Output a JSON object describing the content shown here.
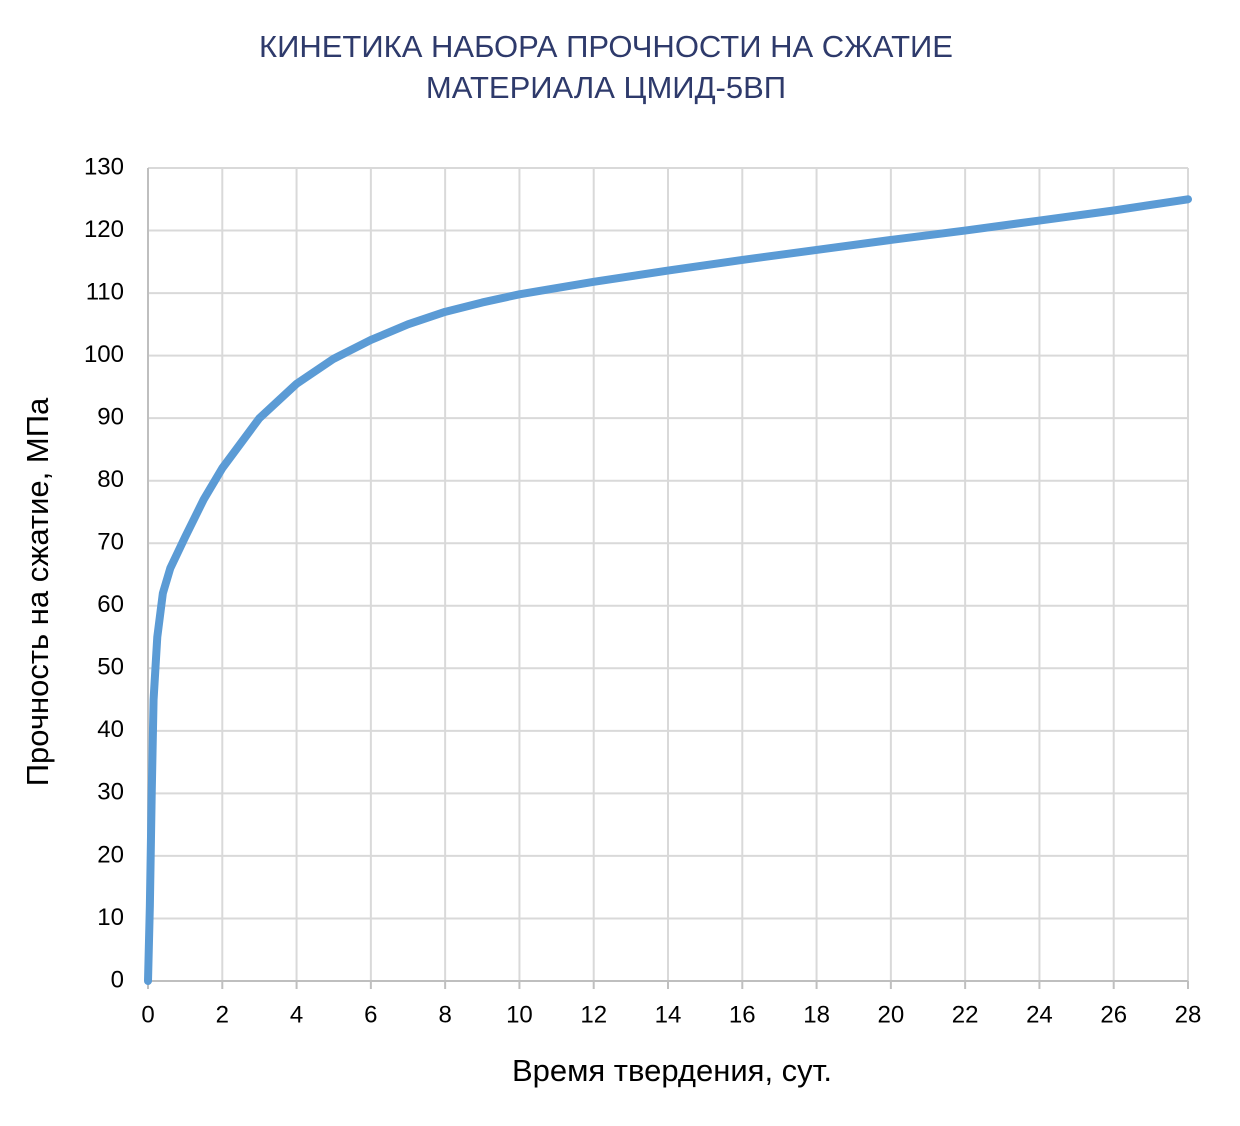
{
  "chart_data": {
    "type": "line",
    "title": [
      "КИНЕТИКА НАБОРА ПРОЧНОСТИ НА СЖАТИЕ",
      "МАТЕРИАЛА ЦМИД-5ВП"
    ],
    "x_label": "Время твердения, сут.",
    "y_label": "Прочность на сжатие, МПа",
    "x": [
      0,
      0.05,
      0.1,
      0.15,
      0.25,
      0.4,
      0.6,
      1,
      1.5,
      2,
      3,
      4,
      5,
      6,
      7,
      8,
      9,
      10,
      12,
      14,
      16,
      18,
      20,
      22,
      24,
      26,
      28
    ],
    "values": [
      0,
      12,
      30,
      45,
      55,
      62,
      66,
      71,
      77,
      82,
      90,
      95.5,
      99.5,
      102.5,
      105,
      107,
      108.5,
      109.8,
      111.8,
      113.6,
      115.3,
      116.9,
      118.5,
      120,
      121.6,
      123.2,
      125
    ],
    "color": "#5b9bd5",
    "xlim": [
      0,
      28
    ],
    "xticks": [
      0,
      2,
      4,
      6,
      8,
      10,
      12,
      14,
      16,
      18,
      20,
      22,
      24,
      26,
      28
    ],
    "ylim": [
      0,
      130
    ],
    "yticks": [
      0,
      10,
      20,
      30,
      40,
      50,
      60,
      70,
      80,
      90,
      100,
      110,
      120,
      130
    ],
    "grid": true
  }
}
